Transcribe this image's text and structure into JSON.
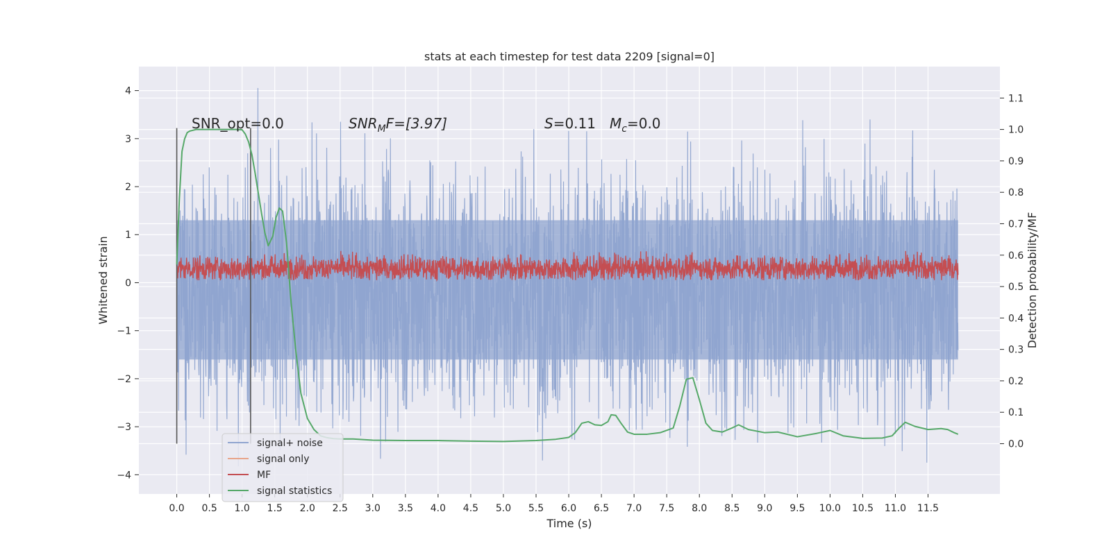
{
  "chart_data": {
    "type": "line",
    "title": "stats at each timestep for test data 2209 [signal=0]",
    "xlabel": "Time (s)",
    "ylabel": "Whitened strain",
    "y2label": "Detection probability/MF",
    "xlim": [
      -0.58,
      12.6
    ],
    "ylim": [
      -4.4,
      4.5
    ],
    "y2lim": [
      -0.16,
      1.2
    ],
    "x_ticks": [
      "0.0",
      "0.5",
      "1.0",
      "1.5",
      "2.0",
      "2.5",
      "3.0",
      "3.5",
      "4.0",
      "4.5",
      "5.0",
      "5.5",
      "6.0",
      "6.5",
      "7.0",
      "7.5",
      "8.0",
      "8.5",
      "9.0",
      "9.5",
      "10.0",
      "10.5",
      "11.0",
      "11.5"
    ],
    "y_ticks": [
      "4",
      "3",
      "2",
      "1",
      "0",
      "−1",
      "−2",
      "−3",
      "−4"
    ],
    "y2_ticks": [
      "1.1",
      "1.0",
      "0.9",
      "0.8",
      "0.7",
      "0.6",
      "0.5",
      "0.4",
      "0.3",
      "0.2",
      "0.1",
      "0.0"
    ],
    "grid": true,
    "legend_position": "lower-left",
    "annotations": {
      "snr_opt": "SNR_opt=0.0",
      "snr_mf_prefix": "SNR",
      "snr_mf_sub": "M",
      "snr_mf_suffix": "F=[3.97]",
      "s_var": "S",
      "s_value": "=0.11",
      "mc_var": "M",
      "mc_sub": "c",
      "mc_value": "=0.0"
    },
    "vertical_markers": [
      0.0,
      1.13
    ],
    "series": [
      {
        "name": "signal+ noise",
        "color": "#8fa4cf",
        "axis": "left",
        "t_range": [
          0.0,
          11.96
        ],
        "band_upper": 1.3,
        "band_lower": -1.6,
        "extremes": {
          "min": -3.9,
          "max": 4.1
        }
      },
      {
        "name": "signal only",
        "color": "#e8a58a",
        "axis": "left"
      },
      {
        "name": "MF",
        "color": "#c44e52",
        "axis": "left",
        "t_range": [
          0.0,
          11.96
        ],
        "center": 0.3,
        "band_upper": 0.7,
        "band_lower": 0.05
      },
      {
        "name": "signal statistics",
        "color": "#55a868",
        "axis": "right",
        "x": [
          0.0,
          0.04,
          0.08,
          0.12,
          0.16,
          0.2,
          0.3,
          0.5,
          0.7,
          0.9,
          1.0,
          1.05,
          1.1,
          1.15,
          1.2,
          1.3,
          1.35,
          1.4,
          1.47,
          1.52,
          1.57,
          1.62,
          1.68,
          1.75,
          1.82,
          1.9,
          2.0,
          2.1,
          2.2,
          2.3,
          2.4,
          2.5,
          2.7,
          3.0,
          3.5,
          4.0,
          4.5,
          5.0,
          5.5,
          5.8,
          6.0,
          6.1,
          6.2,
          6.3,
          6.4,
          6.5,
          6.6,
          6.65,
          6.72,
          6.8,
          6.9,
          7.0,
          7.2,
          7.4,
          7.6,
          7.7,
          7.8,
          7.9,
          8.0,
          8.1,
          8.2,
          8.35,
          8.5,
          8.6,
          8.75,
          9.0,
          9.2,
          9.5,
          9.8,
          10.0,
          10.2,
          10.5,
          10.8,
          10.95,
          11.05,
          11.15,
          11.3,
          11.5,
          11.7,
          11.8,
          11.9,
          11.96
        ],
        "values": [
          0.57,
          0.78,
          0.93,
          0.97,
          0.99,
          0.995,
          1.0,
          1.0,
          1.0,
          1.0,
          0.999,
          0.985,
          0.96,
          0.92,
          0.86,
          0.73,
          0.67,
          0.63,
          0.66,
          0.72,
          0.75,
          0.74,
          0.64,
          0.45,
          0.3,
          0.16,
          0.08,
          0.045,
          0.025,
          0.019,
          0.016,
          0.015,
          0.015,
          0.011,
          0.01,
          0.01,
          0.008,
          0.007,
          0.01,
          0.014,
          0.02,
          0.035,
          0.065,
          0.07,
          0.06,
          0.058,
          0.07,
          0.092,
          0.09,
          0.065,
          0.037,
          0.03,
          0.03,
          0.035,
          0.05,
          0.12,
          0.205,
          0.21,
          0.14,
          0.065,
          0.042,
          0.037,
          0.05,
          0.06,
          0.045,
          0.035,
          0.037,
          0.022,
          0.033,
          0.042,
          0.025,
          0.017,
          0.018,
          0.025,
          0.048,
          0.068,
          0.055,
          0.045,
          0.048,
          0.045,
          0.035,
          0.03
        ]
      }
    ]
  }
}
